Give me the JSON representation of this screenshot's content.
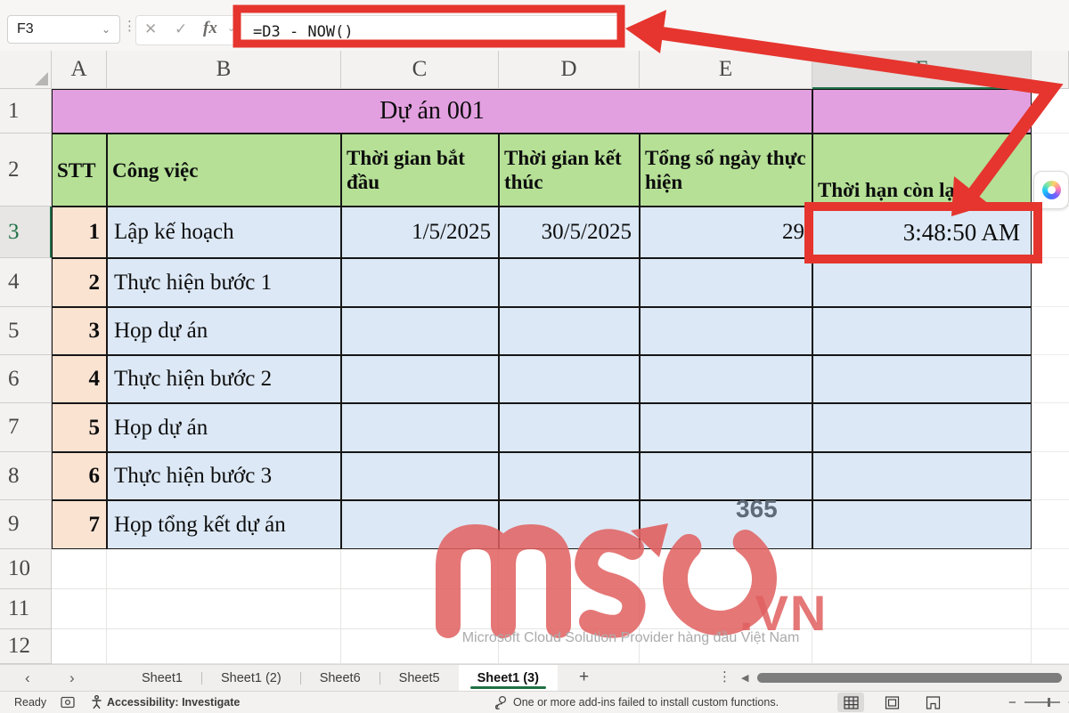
{
  "ui": {
    "name_box": "F3",
    "formula": "=D3 - NOW()",
    "fx": "fx",
    "new_sheet_button": "+",
    "sheet_tabs": [
      "Sheet1",
      "Sheet1 (2)",
      "Sheet6",
      "Sheet5",
      "Sheet1 (3)"
    ],
    "active_tab_index": 4,
    "status": {
      "ready": "Ready",
      "accessibility": "Accessibility: Investigate",
      "addin_message": "One or more add-ins failed to install custom functions."
    }
  },
  "grid": {
    "columns": [
      "A",
      "B",
      "C",
      "D",
      "E",
      "F"
    ],
    "rows": [
      "1",
      "2",
      "3",
      "4",
      "5",
      "6",
      "7",
      "8",
      "9",
      "10",
      "11",
      "12"
    ],
    "selected_cell": "F3",
    "selected_column": "F",
    "selected_row": "3"
  },
  "table": {
    "title": "Dự án 001",
    "headers": [
      "STT",
      "Công việc",
      "Thời gian bắt đầu",
      "Thời gian kết thúc",
      "Tổng số ngày thực hiện",
      "Thời hạn còn lại"
    ],
    "tasks": [
      {
        "stt": "1",
        "name": "Lập kế hoạch",
        "start": "1/5/2025",
        "end": "30/5/2025",
        "days": "29",
        "remaining": "3:48:50 AM"
      },
      {
        "stt": "2",
        "name": "Thực hiện bước 1",
        "start": "",
        "end": "",
        "days": "",
        "remaining": ""
      },
      {
        "stt": "3",
        "name": "Họp dự án",
        "start": "",
        "end": "",
        "days": "",
        "remaining": ""
      },
      {
        "stt": "4",
        "name": "Thực hiện bước 2",
        "start": "",
        "end": "",
        "days": "",
        "remaining": ""
      },
      {
        "stt": "5",
        "name": "Họp dự án",
        "start": "",
        "end": "",
        "days": "",
        "remaining": ""
      },
      {
        "stt": "6",
        "name": "Thực hiện bước 3",
        "start": "",
        "end": "",
        "days": "",
        "remaining": ""
      },
      {
        "stt": "7",
        "name": "Họp tổng kết dự án",
        "start": "",
        "end": "",
        "days": "",
        "remaining": ""
      }
    ]
  },
  "watermark": {
    "logo": "mso",
    "domain": ".vn",
    "badge": "365",
    "tagline": "Microsoft Cloud Solution Provider hàng đầu Việt Nam"
  },
  "colors": {
    "title_fill": "#e3a0e0",
    "header_fill": "#b5e096",
    "body_fill": "#dce8f5",
    "stt_fill": "#fbe3d2",
    "annotation_red": "#e5352e",
    "selection_green": "#1e7145",
    "watermark_red": "#e05f5f"
  }
}
